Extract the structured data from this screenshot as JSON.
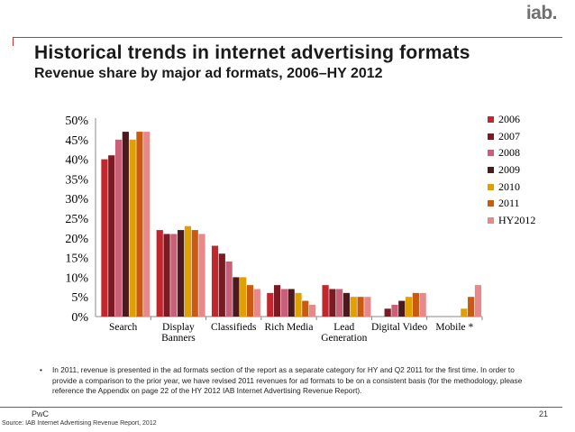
{
  "header": {
    "logo": "iab.",
    "title": "Historical trends in internet advertising formats",
    "subtitle": "Revenue share by major ad formats, 2006–HY 2012"
  },
  "colors": {
    "accent": "#cc3333"
  },
  "chart_data": {
    "type": "bar",
    "categories": [
      "Search",
      "Display\nBanners",
      "Classifieds",
      "Rich Media",
      "Lead\nGeneration",
      "Digital Video",
      "Mobile *"
    ],
    "y_tick_labels": [
      "0%",
      "5%",
      "10%",
      "15%",
      "20%",
      "25%",
      "30%",
      "35%",
      "40%",
      "45%",
      "50%"
    ],
    "ylim": [
      0,
      50
    ],
    "legend_position": "right",
    "series": [
      {
        "name": "2006",
        "color": "#c0282e",
        "values": [
          40,
          22,
          18,
          6,
          8,
          0,
          0
        ]
      },
      {
        "name": "2007",
        "color": "#7a1b23",
        "values": [
          41,
          21,
          16,
          8,
          7,
          2,
          0
        ]
      },
      {
        "name": "2008",
        "color": "#c8607a",
        "values": [
          45,
          21,
          14,
          7,
          7,
          3,
          0
        ]
      },
      {
        "name": "2009",
        "color": "#4a1a1f",
        "values": [
          47,
          22,
          10,
          7,
          6,
          4,
          0
        ]
      },
      {
        "name": "2010",
        "color": "#e0a000",
        "values": [
          45,
          23,
          10,
          6,
          5,
          5,
          2
        ]
      },
      {
        "name": "2011",
        "color": "#c85a12",
        "values": [
          47,
          22,
          8,
          4,
          5,
          6,
          5
        ]
      },
      {
        "name": "HY2012",
        "color": "#e8888a",
        "values": [
          47,
          21,
          7,
          3,
          5,
          6,
          8
        ]
      }
    ]
  },
  "note": {
    "bullet": "•",
    "text": "In 2011, revenue is presented in the ad formats section of the report as a separate category for HY and Q2 2011 for the first time. In order to provide a comparison to the prior year, we have revised 2011 revenues for ad formats to be on a consistent basis (for the methodology, please reference the Appendix on page 22 of the HY 2012 IAB Internet Advertising Revenue Report)."
  },
  "footer": {
    "company": "PwC",
    "page_number": "21",
    "source": "Source: IAB Internet Advertising Revenue Report, 2012"
  }
}
